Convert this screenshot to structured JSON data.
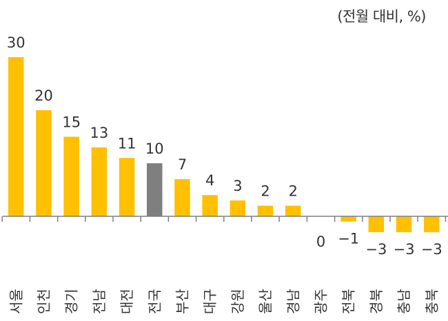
{
  "chart_data": {
    "type": "bar",
    "unit_label": "(전월 대비, %)",
    "categories": [
      "서울",
      "인천",
      "경기",
      "전남",
      "대전",
      "전국",
      "부산",
      "대구",
      "강원",
      "울산",
      "경남",
      "광주",
      "전북",
      "경북",
      "충남",
      "충북"
    ],
    "values": [
      30,
      20,
      15,
      13,
      11,
      10,
      7,
      4,
      3,
      2,
      2,
      0,
      -1,
      -3,
      -3,
      -3
    ],
    "value_labels": [
      "30",
      "20",
      "15",
      "13",
      "11",
      "10",
      "7",
      "4",
      "3",
      "2",
      "2",
      "0",
      "−1",
      "−3",
      "−3",
      "−3"
    ],
    "highlight_category": "전국",
    "colors": {
      "bar": "#FFC000",
      "highlight": "#7F7F7F",
      "axis": "#7F7F7F",
      "text": "#333333"
    },
    "ylim": [
      -3,
      30
    ],
    "grid": false,
    "legend": "none"
  }
}
